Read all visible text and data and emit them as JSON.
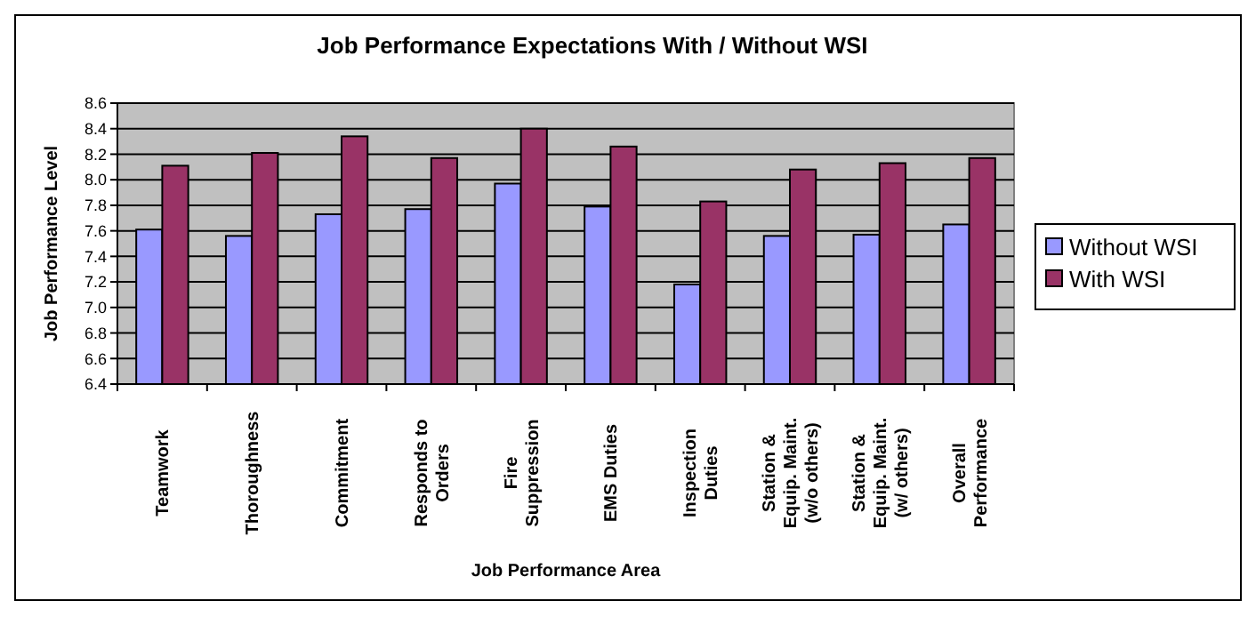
{
  "chart_data": {
    "type": "bar",
    "title": "Job Performance Expectations With / Without WSI",
    "xlabel": "Job Performance Area",
    "ylabel": "Job Performance Level",
    "categories": [
      "Teamwork",
      "Thoroughness",
      "Commitment",
      "Responds to\nOrders",
      "Fire\nSuppression",
      "EMS Duties",
      "Inspection\nDuties",
      "Station &\nEquip. Maint.\n(w/o others)",
      "Station &\nEquip. Maint.\n(w/ others)",
      "Overall\nPerformance"
    ],
    "series": [
      {
        "name": "Without WSI",
        "color": "#9999ff",
        "values": [
          7.61,
          7.56,
          7.73,
          7.77,
          7.97,
          7.79,
          7.18,
          7.56,
          7.57,
          7.65
        ]
      },
      {
        "name": "With WSI",
        "color": "#993366",
        "values": [
          8.11,
          8.21,
          8.34,
          8.17,
          8.4,
          8.26,
          7.83,
          8.08,
          8.13,
          8.17
        ]
      }
    ],
    "ylim": [
      6.4,
      8.6
    ],
    "yticks": [
      6.4,
      6.6,
      6.8,
      {
        "value": 7,
        "label": "7.0"
      },
      7.2,
      7.4,
      7.6,
      7.8,
      {
        "value": 8,
        "label": "8.0"
      },
      8.2,
      8.4,
      8.6
    ],
    "grid": "y",
    "legend": "right"
  }
}
